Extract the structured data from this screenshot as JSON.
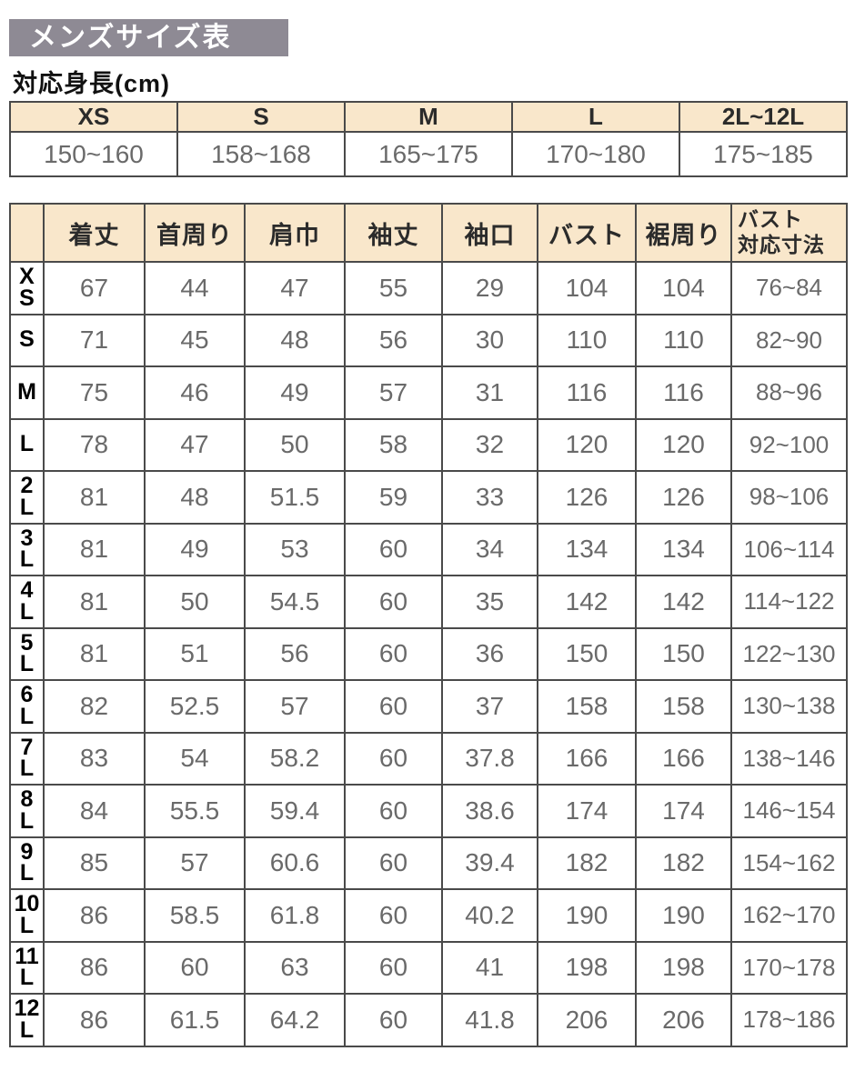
{
  "page": {
    "title": "メンズサイズ表",
    "subtitle": "対応身長(cm)"
  },
  "colors": {
    "title_bg": "#8e8a94",
    "title_text": "#ffffff",
    "table_header_bg": "#f9e7cb",
    "table_border": "#4a4a4a",
    "value_text": "#6a6a6a",
    "label_text": "#111111"
  },
  "height_table": {
    "columns": [
      "XS",
      "S",
      "M",
      "L",
      "2L~12L"
    ],
    "values": [
      "150~160",
      "158~168",
      "165~175",
      "170~180",
      "175~185"
    ]
  },
  "size_table": {
    "corner": "",
    "columns": [
      "着丈",
      "首周り",
      "肩巾",
      "袖丈",
      "袖口",
      "バスト",
      "裾周り",
      "バスト\n対応寸法"
    ],
    "rows": [
      {
        "size": "XS",
        "label": "X\nS",
        "values": [
          "67",
          "44",
          "47",
          "55",
          "29",
          "104",
          "104",
          "76~84"
        ]
      },
      {
        "size": "S",
        "label": "S",
        "values": [
          "71",
          "45",
          "48",
          "56",
          "30",
          "110",
          "110",
          "82~90"
        ]
      },
      {
        "size": "M",
        "label": "M",
        "values": [
          "75",
          "46",
          "49",
          "57",
          "31",
          "116",
          "116",
          "88~96"
        ]
      },
      {
        "size": "L",
        "label": "L",
        "values": [
          "78",
          "47",
          "50",
          "58",
          "32",
          "120",
          "120",
          "92~100"
        ]
      },
      {
        "size": "2L",
        "label": "2\nL",
        "values": [
          "81",
          "48",
          "51.5",
          "59",
          "33",
          "126",
          "126",
          "98~106"
        ]
      },
      {
        "size": "3L",
        "label": "3\nL",
        "values": [
          "81",
          "49",
          "53",
          "60",
          "34",
          "134",
          "134",
          "106~114"
        ]
      },
      {
        "size": "4L",
        "label": "4\nL",
        "values": [
          "81",
          "50",
          "54.5",
          "60",
          "35",
          "142",
          "142",
          "114~122"
        ]
      },
      {
        "size": "5L",
        "label": "5\nL",
        "values": [
          "81",
          "51",
          "56",
          "60",
          "36",
          "150",
          "150",
          "122~130"
        ]
      },
      {
        "size": "6L",
        "label": "6\nL",
        "values": [
          "82",
          "52.5",
          "57",
          "60",
          "37",
          "158",
          "158",
          "130~138"
        ]
      },
      {
        "size": "7L",
        "label": "7\nL",
        "values": [
          "83",
          "54",
          "58.2",
          "60",
          "37.8",
          "166",
          "166",
          "138~146"
        ]
      },
      {
        "size": "8L",
        "label": "8\nL",
        "values": [
          "84",
          "55.5",
          "59.4",
          "60",
          "38.6",
          "174",
          "174",
          "146~154"
        ]
      },
      {
        "size": "9L",
        "label": "9\nL",
        "values": [
          "85",
          "57",
          "60.6",
          "60",
          "39.4",
          "182",
          "182",
          "154~162"
        ]
      },
      {
        "size": "10L",
        "label": "10\nL",
        "values": [
          "86",
          "58.5",
          "61.8",
          "60",
          "40.2",
          "190",
          "190",
          "162~170"
        ]
      },
      {
        "size": "11L",
        "label": "11\nL",
        "values": [
          "86",
          "60",
          "63",
          "60",
          "41",
          "198",
          "198",
          "170~178"
        ]
      },
      {
        "size": "12L",
        "label": "12\nL",
        "values": [
          "86",
          "61.5",
          "64.2",
          "60",
          "41.8",
          "206",
          "206",
          "178~186"
        ]
      }
    ]
  }
}
